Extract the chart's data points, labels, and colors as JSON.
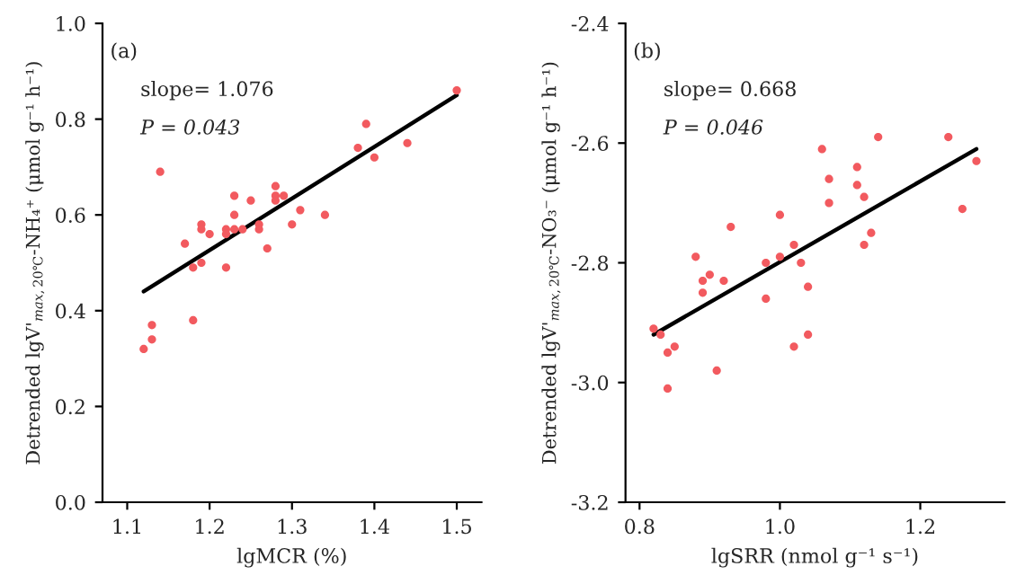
{
  "chart_data": [
    {
      "type": "scatter",
      "xlabel": "lgMCR (%)",
      "ylabel": "Detrended lgV'$_{max,20℃}$-NH₄⁺ (μmol g⁻¹ h⁻¹)",
      "annotations": [
        "(a)",
        "slope= 1.076",
        "P = 0.043"
      ],
      "xlim": [
        1.07,
        1.53
      ],
      "ylim": [
        0,
        1.0
      ],
      "xticks": [
        1.1,
        1.2,
        1.3,
        1.4,
        1.5
      ],
      "yticks": [
        {
          "value": 0,
          "label": "0.0"
        },
        0.2,
        0.4,
        0.6,
        0.8,
        {
          "value": 1,
          "label": "1.0"
        }
      ],
      "grid": false,
      "legend": false,
      "series": [
        {
          "marker": "circle",
          "color": "#f25a5f",
          "x": [
            1.12,
            1.13,
            1.13,
            1.14,
            1.17,
            1.18,
            1.18,
            1.19,
            1.19,
            1.19,
            1.2,
            1.22,
            1.22,
            1.22,
            1.23,
            1.23,
            1.23,
            1.24,
            1.25,
            1.26,
            1.26,
            1.27,
            1.28,
            1.28,
            1.28,
            1.29,
            1.3,
            1.31,
            1.34,
            1.38,
            1.39,
            1.4,
            1.44,
            1.5
          ],
          "values": [
            0.32,
            0.37,
            0.34,
            0.69,
            0.54,
            0.49,
            0.38,
            0.58,
            0.57,
            0.5,
            0.56,
            0.57,
            0.56,
            0.49,
            0.64,
            0.6,
            0.57,
            0.57,
            0.63,
            0.58,
            0.57,
            0.53,
            0.66,
            0.64,
            0.63,
            0.64,
            0.58,
            0.61,
            0.6,
            0.74,
            0.79,
            0.72,
            0.75,
            0.86
          ]
        },
        {
          "type": "line",
          "color": "#000000",
          "x": [
            1.12,
            1.5
          ],
          "values": [
            0.44,
            0.85
          ]
        }
      ]
    },
    {
      "type": "scatter",
      "xlabel": "lgSRR (nmol g⁻¹ s⁻¹)",
      "ylabel": "Detrended lgV'$_{max,20℃}$-NO₃⁻ (μmol g⁻¹ h⁻¹)",
      "annotations": [
        "(b)",
        "slope= 0.668",
        "P = 0.046"
      ],
      "xlim": [
        0.78,
        1.32
      ],
      "ylim": [
        -3.2,
        -2.4
      ],
      "xticks": [
        0.8,
        {
          "value": 1,
          "label": "1.0"
        },
        1.2
      ],
      "yticks": [
        -3.2,
        {
          "value": -3,
          "label": "-3.0"
        },
        -2.8,
        -2.6,
        -2.4
      ],
      "grid": false,
      "legend": false,
      "series": [
        {
          "marker": "circle",
          "color": "#f25a5f",
          "x": [
            0.82,
            0.83,
            0.84,
            0.84,
            0.85,
            0.88,
            0.89,
            0.89,
            0.9,
            0.91,
            0.92,
            0.93,
            0.98,
            0.98,
            1.0,
            1.0,
            1.02,
            1.02,
            1.03,
            1.04,
            1.04,
            1.06,
            1.07,
            1.07,
            1.11,
            1.11,
            1.12,
            1.12,
            1.13,
            1.14,
            1.24,
            1.26,
            1.28
          ],
          "values": [
            -2.91,
            -2.92,
            -2.95,
            -3.01,
            -2.94,
            -2.79,
            -2.83,
            -2.85,
            -2.82,
            -2.98,
            -2.83,
            -2.74,
            -2.8,
            -2.86,
            -2.72,
            -2.79,
            -2.77,
            -2.94,
            -2.8,
            -2.84,
            -2.92,
            -2.61,
            -2.66,
            -2.7,
            -2.64,
            -2.67,
            -2.69,
            -2.77,
            -2.75,
            -2.59,
            -2.59,
            -2.71,
            -2.63
          ]
        },
        {
          "type": "line",
          "color": "#000000",
          "x": [
            0.82,
            1.28
          ],
          "values": [
            -2.92,
            -2.61
          ]
        }
      ]
    }
  ]
}
